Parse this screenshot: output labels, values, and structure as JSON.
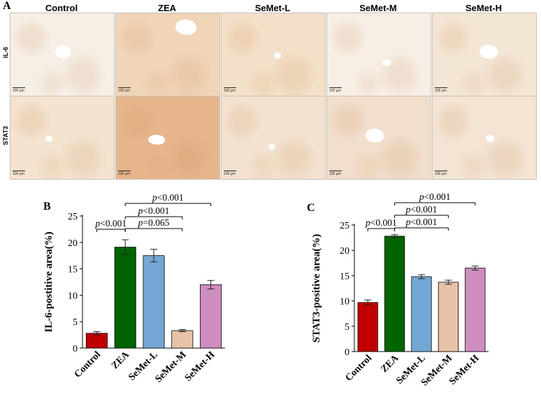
{
  "panels": {
    "a": "A",
    "b": "B",
    "c": "C"
  },
  "micrographs": {
    "columns": [
      "Control",
      "ZEA",
      "SeMet-L",
      "SeMet-M",
      "SeMet-H"
    ],
    "rows": [
      "IL-6",
      "STAT3"
    ],
    "scale_bar": "100 μm",
    "tints": [
      [
        "#f6efe6",
        "#f0d5b8",
        "#f3e0c8",
        "#f7efe6",
        "#f4e6d5"
      ],
      [
        "#f3e3cf",
        "#e6b58c",
        "#f3e2cf",
        "#f1decb",
        "#f3e4d3"
      ]
    ]
  },
  "chart_data": [
    {
      "type": "bar",
      "categories": [
        "Control",
        "ZEA",
        "SeMet-L",
        "SeMet-M",
        "SeMet-H"
      ],
      "values": [
        2.8,
        19.1,
        17.5,
        3.3,
        12.0
      ],
      "errors": [
        0.3,
        1.4,
        1.2,
        0.2,
        0.8
      ],
      "colors": [
        "#c00000",
        "#006400",
        "#74a7d4",
        "#e8c3a8",
        "#cf8ec0"
      ],
      "ylabel": "IL-6-postitive area(%)",
      "ylim": [
        0,
        25
      ],
      "yticks": [
        0,
        5,
        10,
        15,
        20,
        25
      ],
      "comparisons": [
        {
          "from": 0,
          "to": 1,
          "label": "p<0.001"
        },
        {
          "from": 1,
          "to": 3,
          "label": "p=0.065"
        },
        {
          "from": 1,
          "to": 3,
          "label": "p<0.001"
        },
        {
          "from": 1,
          "to": 4,
          "label": "p<0.001"
        }
      ]
    },
    {
      "type": "bar",
      "categories": [
        "Control",
        "ZEA",
        "SeMet-L",
        "SeMet-M",
        "SeMet-H"
      ],
      "values": [
        9.7,
        22.8,
        14.8,
        13.7,
        16.5
      ],
      "errors": [
        0.5,
        0.3,
        0.4,
        0.4,
        0.4
      ],
      "colors": [
        "#c00000",
        "#006400",
        "#74a7d4",
        "#e8c3a8",
        "#cf8ec0"
      ],
      "ylabel": "STAT3-positive area(%)",
      "ylim": [
        0,
        25
      ],
      "yticks": [
        0,
        5,
        10,
        15,
        20,
        25
      ],
      "comparisons": [
        {
          "from": 0,
          "to": 1,
          "label": "p<0.001"
        },
        {
          "from": 1,
          "to": 3,
          "label": "p<0.001"
        },
        {
          "from": 1,
          "to": 3,
          "label": "p<0.001"
        },
        {
          "from": 1,
          "to": 4,
          "label": "p<0.001"
        }
      ]
    }
  ]
}
